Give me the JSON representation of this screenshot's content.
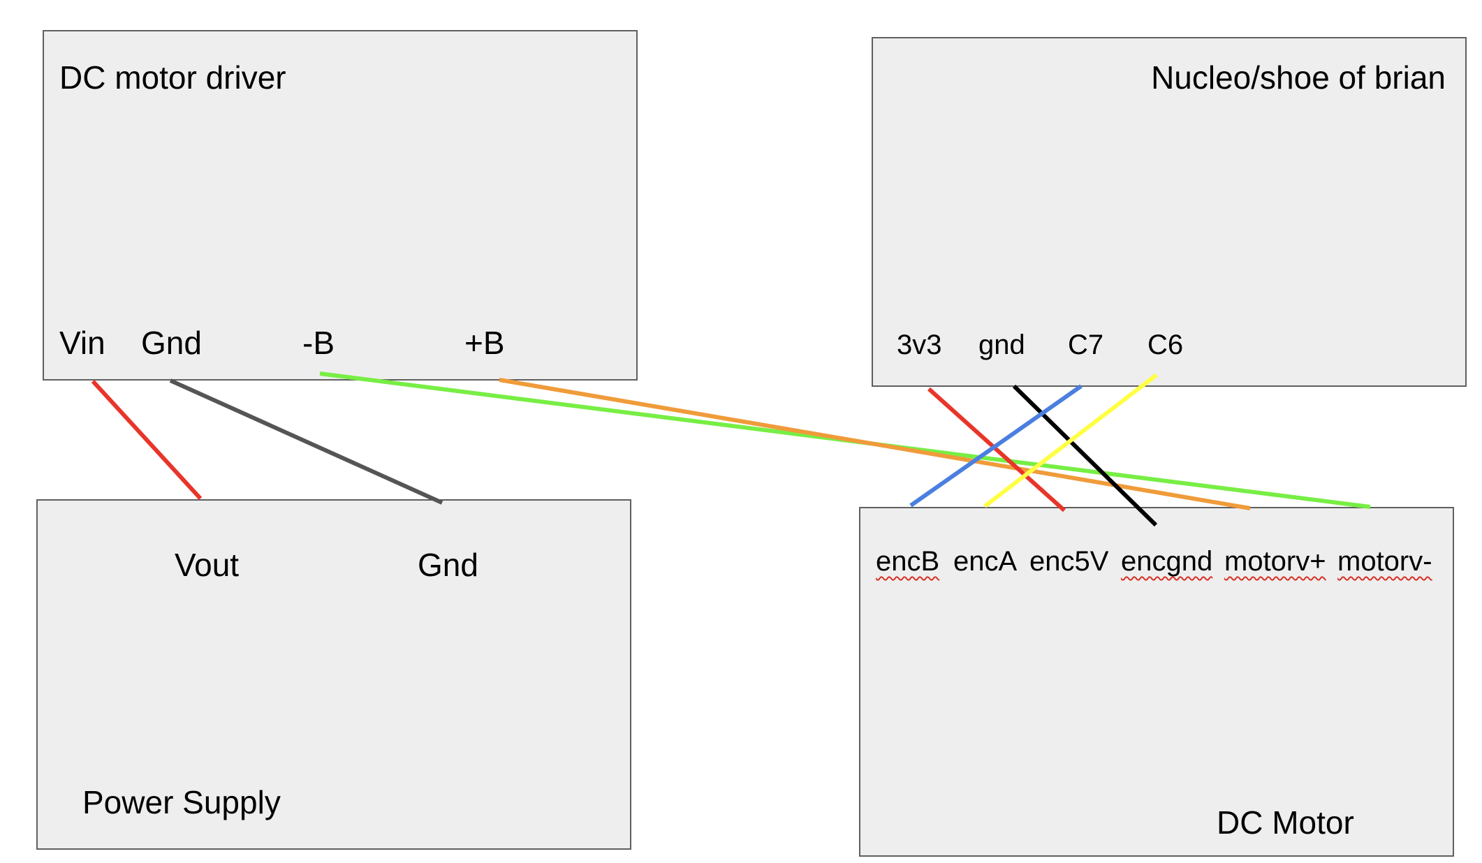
{
  "boxes": {
    "driver": {
      "title": "DC motor driver",
      "pins": {
        "vin": "Vin",
        "gnd": "Gnd",
        "neg_b": "-B",
        "pos_b": "+B"
      }
    },
    "nucleo": {
      "title": "Nucleo/shoe of brian",
      "pins": {
        "v33": "3v3",
        "gnd": "gnd",
        "c7": "C7",
        "c6": "C6"
      }
    },
    "power": {
      "title": "Power Supply",
      "pins": {
        "vout": "Vout",
        "gnd": "Gnd"
      }
    },
    "motor": {
      "title": "DC Motor",
      "pins": {
        "encB": "encB",
        "encA": "encA",
        "enc5v": "enc5V",
        "encgnd": "encgnd",
        "motor_pos": "motorv+",
        "motor_neg": "motorv-"
      }
    }
  },
  "wire_colors": {
    "red": "#e8352a",
    "gray": "#555555",
    "green": "#77ee44",
    "orange": "#f09b3a",
    "blue": "#4a7fe0",
    "black": "#000000",
    "yellow": "#ffff44"
  },
  "connections": [
    {
      "from": "driver.Vin",
      "to": "power.Vout",
      "color": "red"
    },
    {
      "from": "driver.Gnd",
      "to": "power.Gnd",
      "color": "gray"
    },
    {
      "from": "driver.-B",
      "to": "motor.motorv-",
      "color": "green"
    },
    {
      "from": "driver.+B",
      "to": "motor.motorv+",
      "color": "orange"
    },
    {
      "from": "nucleo.3v3",
      "to": "motor.enc5V",
      "color": "red"
    },
    {
      "from": "nucleo.gnd",
      "to": "motor.encgnd",
      "color": "black"
    },
    {
      "from": "nucleo.C7",
      "to": "motor.encB",
      "color": "blue"
    },
    {
      "from": "nucleo.C6",
      "to": "motor.encA",
      "color": "yellow"
    }
  ]
}
